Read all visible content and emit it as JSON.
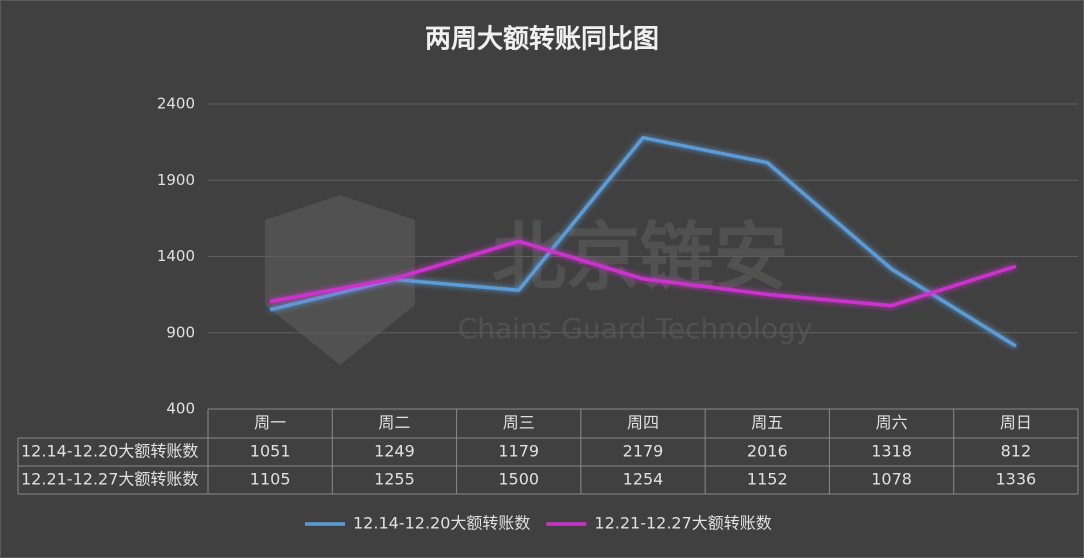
{
  "chart_data": {
    "type": "line",
    "title": "两周大额转账同比图",
    "categories": [
      "周一",
      "周二",
      "周三",
      "周四",
      "周五",
      "周六",
      "周日"
    ],
    "series": [
      {
        "name": "12.14-12.20大额转账数",
        "color": "#5b9bd5",
        "values": [
          1051,
          1249,
          1179,
          2179,
          2016,
          1318,
          812
        ]
      },
      {
        "name": "12.21-12.27大额转账数",
        "color": "#cc33cc",
        "values": [
          1105,
          1255,
          1500,
          1254,
          1152,
          1078,
          1336
        ]
      }
    ],
    "ylim": [
      400,
      2400
    ],
    "yticks": [
      400,
      900,
      1400,
      1900,
      2400
    ],
    "grid": true,
    "legend": "bottom",
    "watermark": {
      "name": "北京链安",
      "subtitle": "Chains Guard Technology"
    }
  }
}
